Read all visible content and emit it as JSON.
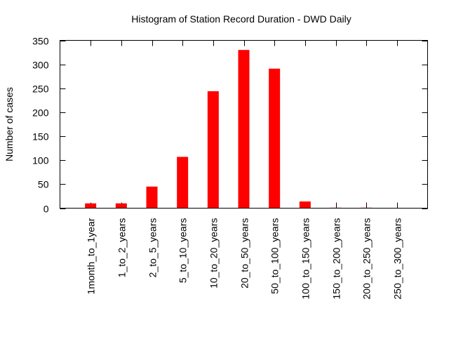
{
  "chart_data": {
    "type": "bar",
    "title": "Histogram of Station Record Duration - DWD Daily",
    "xlabel": "",
    "ylabel": "Number of cases",
    "ylim": [
      0,
      350
    ],
    "yticks": [
      0,
      50,
      100,
      150,
      200,
      250,
      300,
      350
    ],
    "grid": false,
    "categories": [
      "1month_to_1year",
      "1_to_2_years",
      "2_to_5_years",
      "5_to_10_years",
      "10_to_20_years",
      "20_to_50_years",
      "50_to_100_years",
      "100_to_150_years",
      "150_to_200_years",
      "200_to_250_years",
      "250_to_300_years"
    ],
    "values": [
      10,
      10,
      45,
      107,
      244,
      330,
      291,
      14,
      1,
      1,
      0
    ],
    "colors": {
      "bar": "#ff0000",
      "axis": "#000000",
      "background": "#ffffff"
    }
  }
}
